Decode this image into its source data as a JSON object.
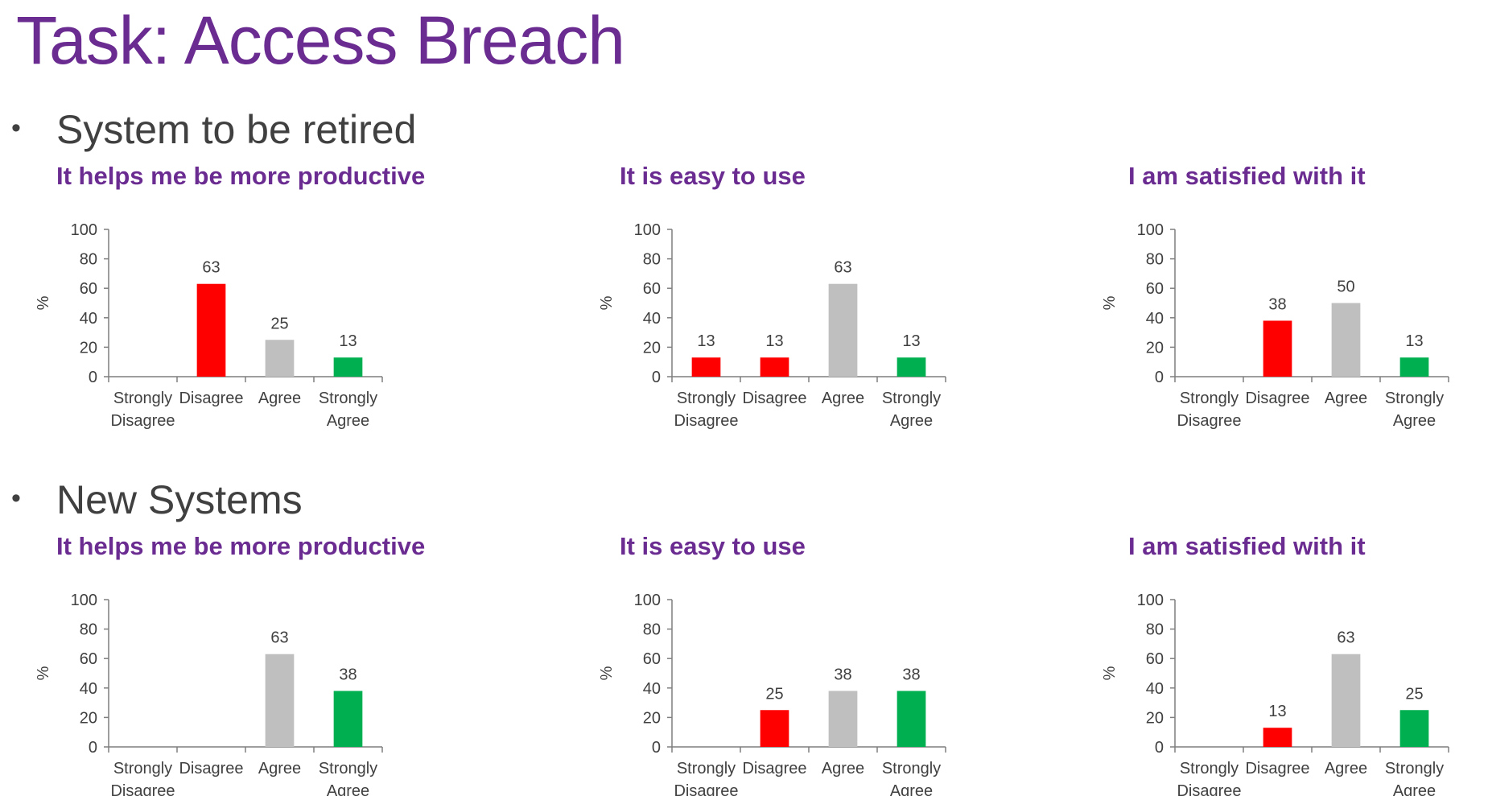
{
  "page": {
    "title": "Task: Access Breach",
    "title_color": "#6b2c91",
    "chart_title_color": "#6b2c91"
  },
  "sections": [
    {
      "bullet": "•",
      "heading": "System to be retired",
      "charts": [
        {
          "title": "It helps me be more productive"
        },
        {
          "title": "It is easy to use"
        },
        {
          "title": "I am satisfied with it"
        }
      ]
    },
    {
      "bullet": "•",
      "heading": "New Systems",
      "charts": [
        {
          "title": "It helps me be more productive"
        },
        {
          "title": "It is easy to use"
        },
        {
          "title": "I am satisfied with it"
        }
      ]
    }
  ],
  "colors": {
    "strongly_disagree": "#ff0000",
    "disagree": "#ff0000",
    "agree": "#bfbfbf",
    "strongly_agree": "#00b050",
    "axis": "#7f7f7f"
  },
  "chart_data": [
    {
      "type": "bar",
      "title": "It helps me be more productive",
      "categories": [
        [
          "Strongly",
          "Disagree"
        ],
        [
          "Disagree"
        ],
        [
          "Agree"
        ],
        [
          "Strongly",
          "Agree"
        ]
      ],
      "values": [
        null,
        63,
        25,
        13
      ],
      "bar_colors": [
        "#ff0000",
        "#ff0000",
        "#bfbfbf",
        "#00b050"
      ],
      "ylabel": "%",
      "ylim": [
        0,
        100
      ],
      "yticks": [
        0,
        20,
        40,
        60,
        80,
        100
      ],
      "grid": false,
      "legend": "none"
    },
    {
      "type": "bar",
      "title": "It is easy to use",
      "categories": [
        [
          "Strongly",
          "Disagree"
        ],
        [
          "Disagree"
        ],
        [
          "Agree"
        ],
        [
          "Strongly",
          "Agree"
        ]
      ],
      "values": [
        13,
        13,
        63,
        13
      ],
      "bar_colors": [
        "#ff0000",
        "#ff0000",
        "#bfbfbf",
        "#00b050"
      ],
      "ylabel": "%",
      "ylim": [
        0,
        100
      ],
      "yticks": [
        0,
        20,
        40,
        60,
        80,
        100
      ],
      "grid": false,
      "legend": "none"
    },
    {
      "type": "bar",
      "title": "I am satisfied with it",
      "categories": [
        [
          "Strongly",
          "Disagree"
        ],
        [
          "Disagree"
        ],
        [
          "Agree"
        ],
        [
          "Strongly",
          "Agree"
        ]
      ],
      "values": [
        null,
        38,
        50,
        13
      ],
      "bar_colors": [
        "#ff0000",
        "#ff0000",
        "#bfbfbf",
        "#00b050"
      ],
      "ylabel": "%",
      "ylim": [
        0,
        100
      ],
      "yticks": [
        0,
        20,
        40,
        60,
        80,
        100
      ],
      "grid": false,
      "legend": "none"
    },
    {
      "type": "bar",
      "title": "It helps me be more productive",
      "categories": [
        [
          "Strongly",
          "Disagree"
        ],
        [
          "Disagree"
        ],
        [
          "Agree"
        ],
        [
          "Strongly",
          "Agree"
        ]
      ],
      "values": [
        null,
        null,
        63,
        38
      ],
      "bar_colors": [
        "#ff0000",
        "#ff0000",
        "#bfbfbf",
        "#00b050"
      ],
      "ylabel": "%",
      "ylim": [
        0,
        100
      ],
      "yticks": [
        0,
        20,
        40,
        60,
        80,
        100
      ],
      "grid": false,
      "legend": "none"
    },
    {
      "type": "bar",
      "title": "It is easy to use",
      "categories": [
        [
          "Strongly",
          "Disagree"
        ],
        [
          "Disagree"
        ],
        [
          "Agree"
        ],
        [
          "Strongly",
          "Agree"
        ]
      ],
      "values": [
        null,
        25,
        38,
        38
      ],
      "bar_colors": [
        "#ff0000",
        "#ff0000",
        "#bfbfbf",
        "#00b050"
      ],
      "ylabel": "%",
      "ylim": [
        0,
        100
      ],
      "yticks": [
        0,
        20,
        40,
        60,
        80,
        100
      ],
      "grid": false,
      "legend": "none"
    },
    {
      "type": "bar",
      "title": "I am satisfied with it",
      "categories": [
        [
          "Strongly",
          "Disagree"
        ],
        [
          "Disagree"
        ],
        [
          "Agree"
        ],
        [
          "Strongly",
          "Agree"
        ]
      ],
      "values": [
        null,
        13,
        63,
        25
      ],
      "bar_colors": [
        "#ff0000",
        "#ff0000",
        "#bfbfbf",
        "#00b050"
      ],
      "ylabel": "%",
      "ylim": [
        0,
        100
      ],
      "yticks": [
        0,
        20,
        40,
        60,
        80,
        100
      ],
      "grid": false,
      "legend": "none"
    }
  ]
}
